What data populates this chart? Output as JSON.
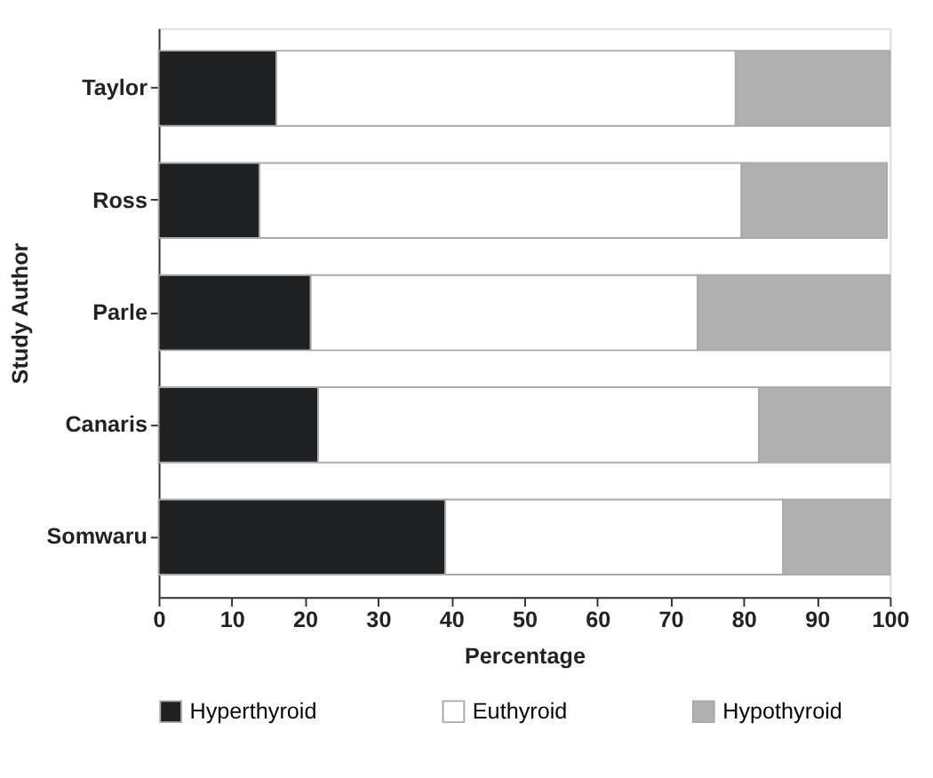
{
  "chart_data": {
    "type": "bar",
    "orientation": "horizontal",
    "stacked": true,
    "xlabel": "Percentage",
    "ylabel": "Study Author",
    "categories": [
      "Taylor",
      "Ross",
      "Parle",
      "Canaris",
      "Somwaru"
    ],
    "series": [
      {
        "name": "Hyperthyroid",
        "color": "#1f2022",
        "values": [
          16.1,
          13.8,
          20.8,
          21.8,
          39.2
        ]
      },
      {
        "name": "Euthyroid",
        "color": "#ffffff",
        "values": [
          62.8,
          65.9,
          52.9,
          60.3,
          46.2
        ]
      },
      {
        "name": "Hypothyroid",
        "color": "#b0b0b0",
        "values": [
          21.1,
          19.9,
          26.3,
          17.9,
          14.6
        ]
      }
    ],
    "xlim": [
      0,
      100
    ],
    "xticks": [
      0,
      10,
      20,
      30,
      40,
      50,
      60,
      70,
      80,
      90,
      100
    ],
    "grid": false,
    "legend": "bottom"
  }
}
